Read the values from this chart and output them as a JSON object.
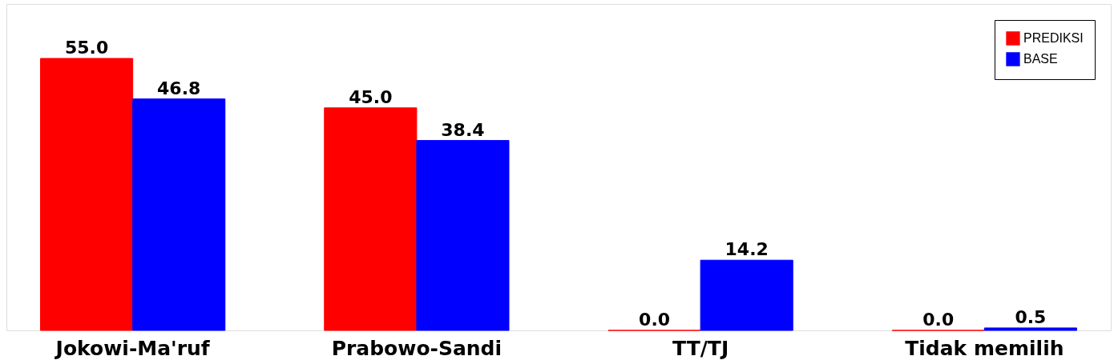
{
  "chart_data": {
    "type": "bar",
    "categories": [
      "Jokowi-Ma'ruf",
      "Prabowo-Sandi",
      "TT/TJ",
      "Tidak memilih"
    ],
    "series": [
      {
        "name": "PREDIKSI",
        "color": "#ff0000",
        "values": [
          55.0,
          45.0,
          0.0,
          0.0
        ],
        "value_labels": [
          "55.0",
          "45.0",
          "0.0",
          "0.0"
        ]
      },
      {
        "name": "BASE",
        "color": "#0000ff",
        "values": [
          46.8,
          38.4,
          14.2,
          0.5
        ],
        "value_labels": [
          "46.8",
          "38.4",
          "14.2",
          "0.5"
        ]
      }
    ],
    "ylim": [
      0,
      66
    ],
    "legend": "top right",
    "grid": false,
    "tick_labels": "x"
  }
}
